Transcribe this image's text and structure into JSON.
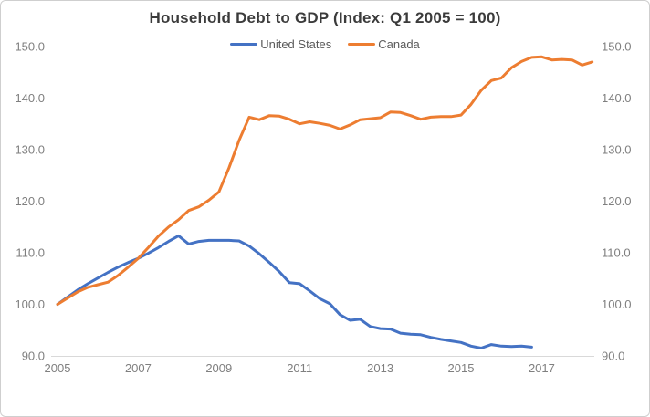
{
  "window": {
    "background_color": "#ffffff",
    "border_color": "#cfcfcf"
  },
  "chart_data": {
    "type": "line",
    "title": "Household Debt to GDP (Index: Q1 2005 = 100)",
    "xlabel": "",
    "ylabel": "",
    "ylim": [
      90,
      150
    ],
    "grid": false,
    "legend_position": "top-center",
    "dual_y_axis": true,
    "axis_line_color": "#d9d9d9",
    "tick_label_color": "#7f7f7f",
    "title_color": "#3b3b3b",
    "legend_text_color": "#595959",
    "x_start": 2005.0,
    "x_step": 0.25,
    "x_tick_labels": [
      "2005",
      "2007",
      "2009",
      "2011",
      "2013",
      "2015",
      "2017"
    ],
    "x_tick_years": [
      2005,
      2007,
      2009,
      2011,
      2013,
      2015,
      2017
    ],
    "y_tick_labels": [
      "90.0",
      "100.0",
      "110.0",
      "120.0",
      "130.0",
      "140.0",
      "150.0"
    ],
    "y_tick_values": [
      90,
      100,
      110,
      120,
      130,
      140,
      150
    ],
    "series": [
      {
        "name": "United States",
        "color": "#4472C4",
        "first_quarter": "2005Q1",
        "last_quarter": "2016Q4",
        "values": [
          100.0,
          101.4,
          102.8,
          104.0,
          105.1,
          106.2,
          107.2,
          108.1,
          108.9,
          109.9,
          111.0,
          112.2,
          113.3,
          111.7,
          112.2,
          112.4,
          112.4,
          112.4,
          112.3,
          111.3,
          109.8,
          108.1,
          106.3,
          104.2,
          104.0,
          102.6,
          101.1,
          100.1,
          98.0,
          96.9,
          97.1,
          95.7,
          95.3,
          95.2,
          94.4,
          94.2,
          94.1,
          93.6,
          93.2,
          92.9,
          92.6,
          91.9,
          91.5,
          92.2,
          91.9,
          91.8,
          91.9,
          91.7
        ]
      },
      {
        "name": "Canada",
        "color": "#ED7D31",
        "first_quarter": "2005Q1",
        "last_quarter": "2018Q2",
        "values": [
          100.0,
          101.2,
          102.4,
          103.3,
          103.8,
          104.3,
          105.6,
          107.2,
          108.9,
          111.0,
          113.2,
          115.0,
          116.4,
          118.2,
          118.9,
          120.2,
          121.8,
          126.5,
          131.8,
          136.3,
          135.8,
          136.6,
          136.5,
          135.9,
          135.0,
          135.4,
          135.1,
          134.7,
          134.0,
          134.8,
          135.8,
          136.0,
          136.2,
          137.3,
          137.2,
          136.6,
          135.9,
          136.3,
          136.4,
          136.4,
          136.7,
          138.8,
          141.5,
          143.4,
          143.9,
          145.9,
          147.1,
          147.9,
          148.0,
          147.4,
          147.5,
          147.4,
          146.4,
          147.0
        ]
      }
    ]
  }
}
